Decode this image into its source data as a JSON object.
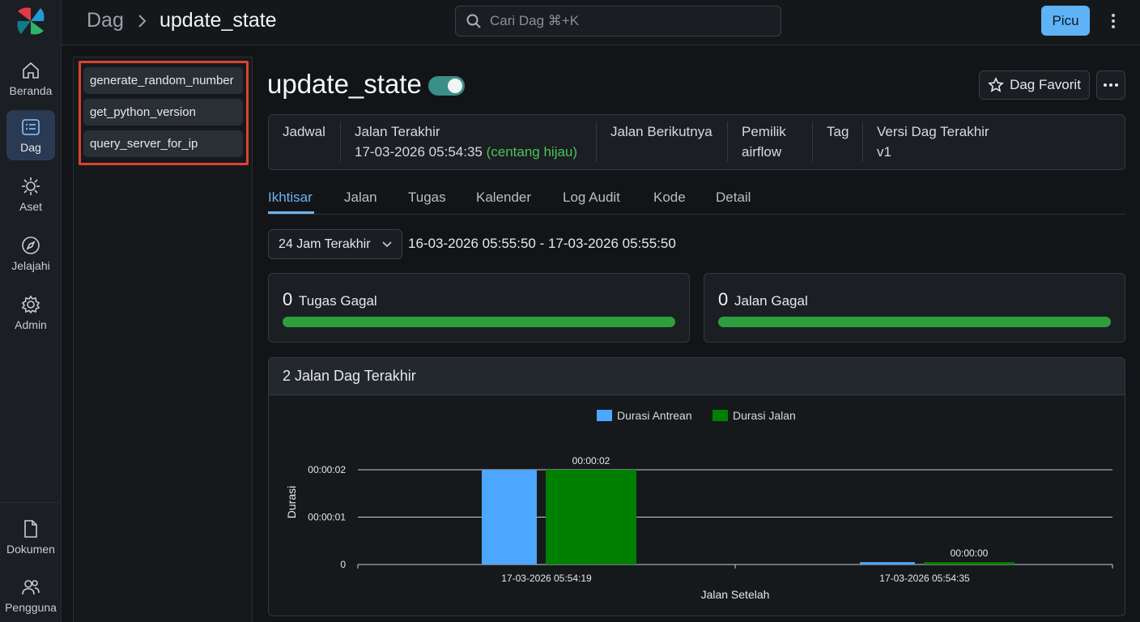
{
  "nav": {
    "items": [
      {
        "label": "Beranda",
        "icon": "home-icon"
      },
      {
        "label": "Dag",
        "icon": "dag-list-icon",
        "active": true
      },
      {
        "label": "Aset",
        "icon": "asset-icon"
      },
      {
        "label": "Jelajahi",
        "icon": "compass-icon"
      },
      {
        "label": "Admin",
        "icon": "gear-icon"
      }
    ],
    "bottom_items": [
      {
        "label": "Dokumen",
        "icon": "document-icon"
      },
      {
        "label": "Pengguna",
        "icon": "users-icon"
      }
    ]
  },
  "header": {
    "breadcrumb_root": "Dag",
    "breadcrumb_current": "update_state",
    "search_placeholder": "Cari Dag ⌘+K",
    "trigger_label": "Picu"
  },
  "tasks": [
    "generate_random_number",
    "get_python_version",
    "query_server_for_ip"
  ],
  "dag": {
    "title": "update_state",
    "paused": false,
    "favorite_label": "Dag Favorit"
  },
  "info": {
    "schedule_label": "Jadwal",
    "schedule_value": "",
    "last_run_label": "Jalan Terakhir",
    "last_run_value": "17-03-2026 05:54:35",
    "last_run_status": "(centang hijau)",
    "next_run_label": "Jalan Berikutnya",
    "next_run_value": "",
    "owner_label": "Pemilik",
    "owner_value": "airflow",
    "tag_label": "Tag",
    "tag_value": "",
    "version_label": "Versi Dag Terakhir",
    "version_value": "v1"
  },
  "tabs": [
    "Ikhtisar",
    "Jalan",
    "Tugas",
    "Kalender",
    "Log Audit",
    "Kode",
    "Detail"
  ],
  "active_tab": "Ikhtisar",
  "filter": {
    "range_label": "24 Jam Terakhir",
    "range_text": "16-03-2026 05:55:50 - 17-03-2026 05:55:50"
  },
  "stats": {
    "failed_tasks_count": "0",
    "failed_tasks_label": "Tugas Gagal",
    "failed_tasks_success_fraction": 1.0,
    "failed_runs_count": "0",
    "failed_runs_label": "Jalan Gagal",
    "failed_runs_success_fraction": 1.0
  },
  "colors": {
    "accent": "#6ab4f2",
    "success": "#2f9e3f",
    "queued": "#4da6ff",
    "running": "#008000",
    "toggle_on": "#3a8f88",
    "highlight": "#d9442f"
  },
  "chart_data": {
    "type": "bar",
    "title": "2 Jalan Dag Terakhir",
    "xlabel": "Jalan Setelah",
    "ylabel": "Durasi",
    "categories": [
      "17-03-2026 05:54:19",
      "17-03-2026 05:54:35"
    ],
    "series": [
      {
        "name": "Durasi Antrean",
        "values": [
          2,
          0.05
        ],
        "color": "#4da6ff"
      },
      {
        "name": "Durasi Jalan",
        "values": [
          2,
          0.05
        ],
        "color": "#008000"
      }
    ],
    "data_labels": [
      "00:00:02",
      "00:00:00"
    ],
    "y_ticks": [
      {
        "value": 0,
        "label": "0"
      },
      {
        "value": 1,
        "label": "00:00:01"
      },
      {
        "value": 2,
        "label": "00:00:02"
      }
    ],
    "ylim": [
      0,
      2
    ],
    "legend_position": "top-center",
    "grid": true
  }
}
